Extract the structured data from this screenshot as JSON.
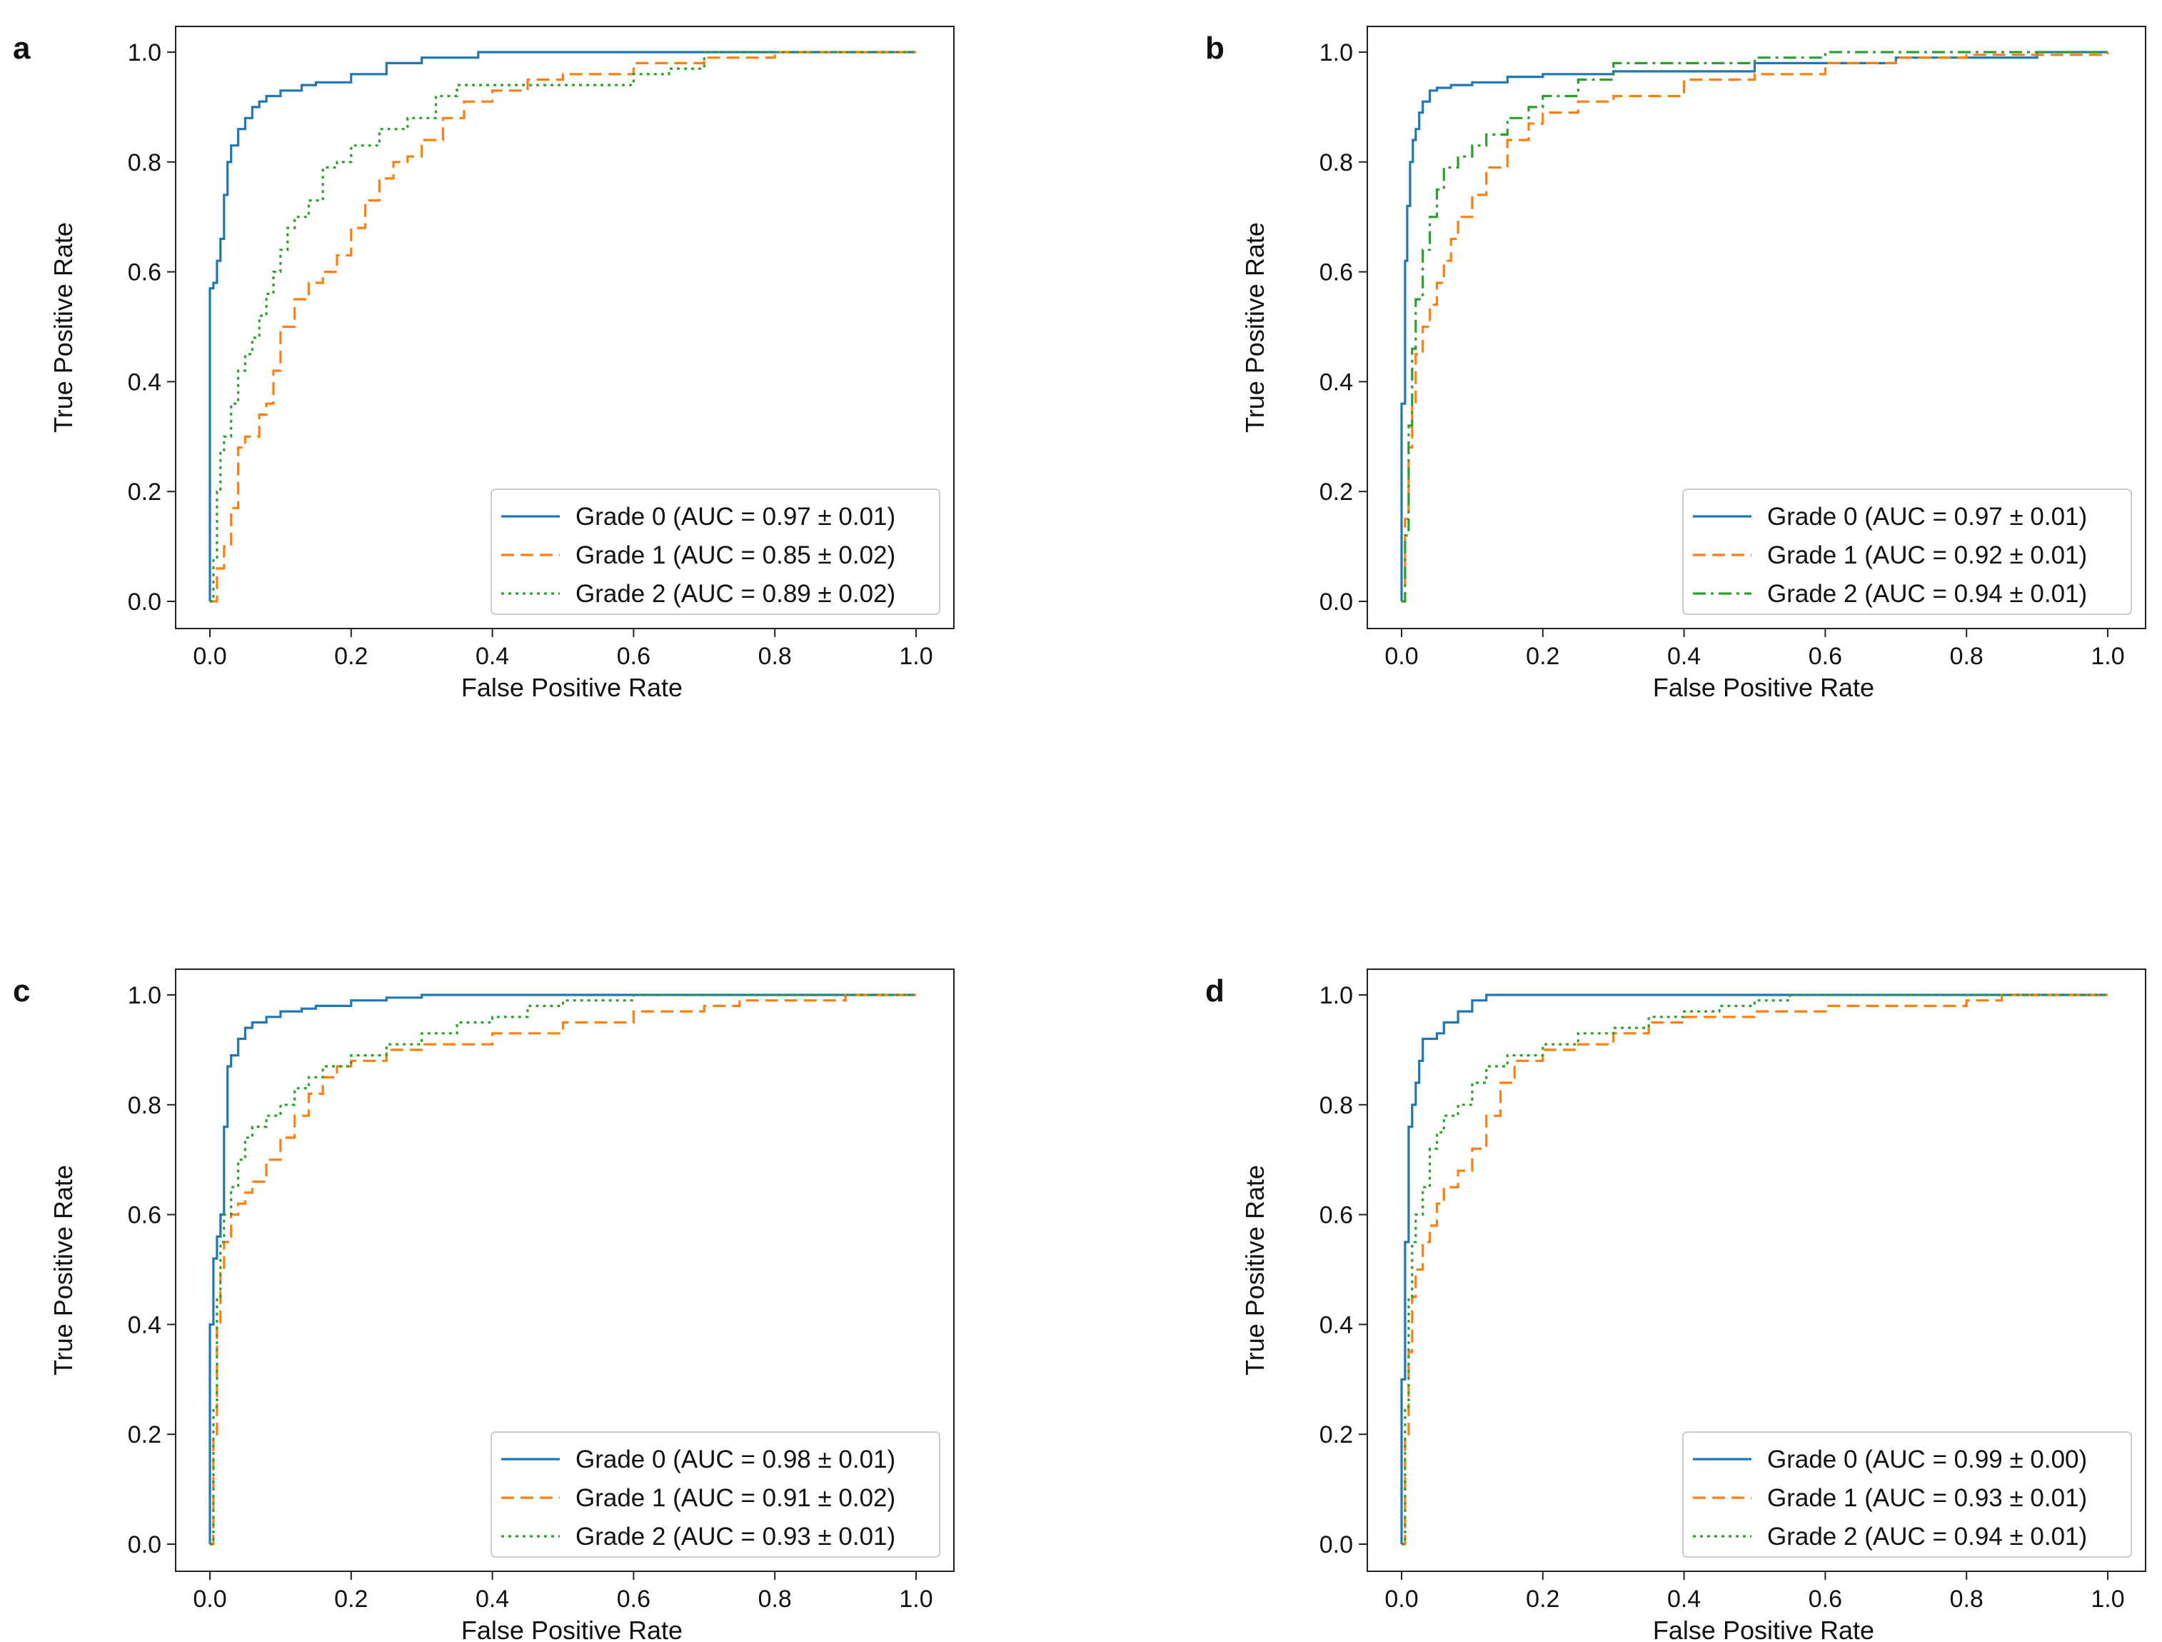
{
  "chart_data": [
    {
      "panel": "a",
      "type": "line",
      "title": "",
      "xlabel": "False Positive Rate",
      "ylabel": "True Positive Rate",
      "xlim": [
        0.0,
        1.0
      ],
      "ylim": [
        0.0,
        1.0
      ],
      "xticks": [
        "0.0",
        "0.2",
        "0.4",
        "0.6",
        "0.8",
        "1.0"
      ],
      "yticks": [
        "0.0",
        "0.2",
        "0.4",
        "0.6",
        "0.8",
        "1.0"
      ],
      "legend_position": "bottom-right",
      "series": [
        {
          "name": "Grade 0",
          "label": "Grade 0 (AUC = 0.97 ± 0.01)",
          "style": "solid",
          "color": "#1f77b4",
          "x": [
            0,
            0,
            0.005,
            0.01,
            0.015,
            0.02,
            0.025,
            0.03,
            0.04,
            0.05,
            0.06,
            0.07,
            0.08,
            0.1,
            0.13,
            0.15,
            0.2,
            0.25,
            0.3,
            0.38,
            0.5,
            1.0
          ],
          "y": [
            0,
            0.57,
            0.58,
            0.62,
            0.66,
            0.74,
            0.8,
            0.83,
            0.86,
            0.88,
            0.9,
            0.91,
            0.92,
            0.93,
            0.94,
            0.945,
            0.96,
            0.98,
            0.99,
            1.0,
            1.0,
            1.0
          ]
        },
        {
          "name": "Grade 1",
          "label": "Grade 1 (AUC = 0.85 ± 0.02)",
          "style": "dashed",
          "color": "#ff7f0e",
          "x": [
            0,
            0.01,
            0.02,
            0.03,
            0.04,
            0.05,
            0.07,
            0.08,
            0.09,
            0.1,
            0.12,
            0.14,
            0.16,
            0.18,
            0.2,
            0.22,
            0.24,
            0.26,
            0.28,
            0.3,
            0.33,
            0.36,
            0.4,
            0.45,
            0.5,
            0.6,
            0.7,
            0.8,
            1.0
          ],
          "y": [
            0,
            0.06,
            0.1,
            0.17,
            0.28,
            0.3,
            0.34,
            0.36,
            0.42,
            0.5,
            0.55,
            0.58,
            0.6,
            0.63,
            0.68,
            0.73,
            0.77,
            0.8,
            0.81,
            0.84,
            0.88,
            0.91,
            0.93,
            0.95,
            0.96,
            0.98,
            0.99,
            1.0,
            1.0
          ]
        },
        {
          "name": "Grade 2",
          "label": "Grade 2 (AUC = 0.89 ± 0.02)",
          "style": "dotted",
          "color": "#2ca02c",
          "x": [
            0,
            0.005,
            0.01,
            0.015,
            0.02,
            0.03,
            0.04,
            0.05,
            0.06,
            0.07,
            0.08,
            0.09,
            0.1,
            0.11,
            0.12,
            0.14,
            0.16,
            0.18,
            0.2,
            0.24,
            0.28,
            0.32,
            0.35,
            0.4,
            0.5,
            0.6,
            0.65,
            0.7,
            1.0
          ],
          "y": [
            0,
            0.08,
            0.2,
            0.27,
            0.3,
            0.36,
            0.42,
            0.45,
            0.48,
            0.52,
            0.56,
            0.6,
            0.64,
            0.68,
            0.7,
            0.73,
            0.79,
            0.8,
            0.83,
            0.86,
            0.88,
            0.92,
            0.94,
            0.94,
            0.94,
            0.96,
            0.97,
            1.0,
            1.0
          ]
        }
      ]
    },
    {
      "panel": "b",
      "type": "line",
      "title": "",
      "xlabel": "False Positive Rate",
      "ylabel": "True Positive Rate",
      "xlim": [
        0.0,
        1.0
      ],
      "ylim": [
        0.0,
        1.0
      ],
      "xticks": [
        "0.0",
        "0.2",
        "0.4",
        "0.6",
        "0.8",
        "1.0"
      ],
      "yticks": [
        "0.0",
        "0.2",
        "0.4",
        "0.6",
        "0.8",
        "1.0"
      ],
      "legend_position": "bottom-right",
      "series": [
        {
          "name": "Grade 0",
          "label": "Grade 0 (AUC = 0.97 ± 0.01)",
          "style": "solid",
          "color": "#1f77b4",
          "x": [
            0,
            0,
            0.005,
            0.008,
            0.012,
            0.016,
            0.02,
            0.025,
            0.03,
            0.04,
            0.05,
            0.07,
            0.1,
            0.15,
            0.2,
            0.3,
            0.5,
            0.7,
            0.9,
            1.0
          ],
          "y": [
            0,
            0.36,
            0.62,
            0.72,
            0.8,
            0.84,
            0.86,
            0.89,
            0.91,
            0.93,
            0.935,
            0.94,
            0.945,
            0.955,
            0.96,
            0.965,
            0.98,
            0.99,
            1.0,
            1.0
          ]
        },
        {
          "name": "Grade 1",
          "label": "Grade 1 (AUC = 0.92 ± 0.01)",
          "style": "dashed",
          "color": "#ff7f0e",
          "x": [
            0,
            0.005,
            0.01,
            0.015,
            0.02,
            0.03,
            0.04,
            0.05,
            0.06,
            0.07,
            0.08,
            0.1,
            0.12,
            0.15,
            0.18,
            0.2,
            0.25,
            0.3,
            0.4,
            0.5,
            0.6,
            0.7,
            0.8,
            1.0
          ],
          "y": [
            0,
            0.15,
            0.28,
            0.36,
            0.45,
            0.5,
            0.54,
            0.58,
            0.62,
            0.66,
            0.7,
            0.74,
            0.79,
            0.84,
            0.87,
            0.89,
            0.91,
            0.92,
            0.95,
            0.96,
            0.98,
            0.99,
            0.995,
            1.0
          ]
        },
        {
          "name": "Grade 2",
          "label": "Grade 2 (AUC = 0.94 ± 0.01)",
          "style": "dashdot",
          "color": "#2ca02c",
          "x": [
            0,
            0.005,
            0.01,
            0.015,
            0.02,
            0.03,
            0.04,
            0.05,
            0.06,
            0.08,
            0.1,
            0.12,
            0.15,
            0.18,
            0.2,
            0.25,
            0.3,
            0.4,
            0.5,
            0.6,
            0.8,
            1.0
          ],
          "y": [
            0,
            0.12,
            0.32,
            0.46,
            0.55,
            0.64,
            0.7,
            0.75,
            0.79,
            0.81,
            0.83,
            0.85,
            0.88,
            0.9,
            0.92,
            0.95,
            0.98,
            0.98,
            0.99,
            1.0,
            1.0,
            1.0
          ]
        }
      ]
    },
    {
      "panel": "c",
      "type": "line",
      "title": "",
      "xlabel": "False Positive Rate",
      "ylabel": "True Positive Rate",
      "xlim": [
        0.0,
        1.0
      ],
      "ylim": [
        0.0,
        1.0
      ],
      "xticks": [
        "0.0",
        "0.2",
        "0.4",
        "0.6",
        "0.8",
        "1.0"
      ],
      "yticks": [
        "0.0",
        "0.2",
        "0.4",
        "0.6",
        "0.8",
        "1.0"
      ],
      "legend_position": "bottom-right",
      "series": [
        {
          "name": "Grade 0",
          "label": "Grade 0 (AUC = 0.98 ± 0.01)",
          "style": "solid",
          "color": "#1f77b4",
          "x": [
            0,
            0,
            0.005,
            0.01,
            0.015,
            0.02,
            0.025,
            0.03,
            0.04,
            0.05,
            0.06,
            0.08,
            0.1,
            0.13,
            0.15,
            0.2,
            0.25,
            0.3,
            0.35,
            0.5,
            1.0
          ],
          "y": [
            0,
            0.4,
            0.52,
            0.56,
            0.6,
            0.76,
            0.87,
            0.89,
            0.92,
            0.94,
            0.95,
            0.96,
            0.97,
            0.975,
            0.98,
            0.99,
            0.995,
            1.0,
            1.0,
            1.0,
            1.0
          ]
        },
        {
          "name": "Grade 1",
          "label": "Grade 1 (AUC = 0.91 ± 0.02)",
          "style": "dashed",
          "color": "#ff7f0e",
          "x": [
            0,
            0.005,
            0.01,
            0.015,
            0.02,
            0.03,
            0.04,
            0.05,
            0.06,
            0.08,
            0.1,
            0.12,
            0.14,
            0.16,
            0.18,
            0.2,
            0.25,
            0.3,
            0.4,
            0.5,
            0.6,
            0.7,
            0.75,
            0.9,
            1.0
          ],
          "y": [
            0,
            0.2,
            0.4,
            0.5,
            0.55,
            0.6,
            0.62,
            0.64,
            0.66,
            0.7,
            0.74,
            0.78,
            0.82,
            0.85,
            0.87,
            0.88,
            0.9,
            0.91,
            0.93,
            0.95,
            0.97,
            0.98,
            0.99,
            1.0,
            1.0
          ]
        },
        {
          "name": "Grade 2",
          "label": "Grade 2 (AUC = 0.93 ± 0.01)",
          "style": "dotted",
          "color": "#2ca02c",
          "x": [
            0,
            0.005,
            0.01,
            0.015,
            0.02,
            0.03,
            0.04,
            0.05,
            0.06,
            0.08,
            0.1,
            0.12,
            0.14,
            0.16,
            0.2,
            0.25,
            0.3,
            0.35,
            0.4,
            0.45,
            0.5,
            0.6,
            0.8,
            1.0
          ],
          "y": [
            0,
            0.25,
            0.45,
            0.55,
            0.6,
            0.65,
            0.7,
            0.74,
            0.76,
            0.78,
            0.8,
            0.83,
            0.85,
            0.87,
            0.89,
            0.91,
            0.93,
            0.95,
            0.96,
            0.98,
            0.99,
            1.0,
            1.0,
            1.0
          ]
        }
      ]
    },
    {
      "panel": "d",
      "type": "line",
      "title": "",
      "xlabel": "False Positive Rate",
      "ylabel": "True Positive Rate",
      "xlim": [
        0.0,
        1.0
      ],
      "ylim": [
        0.0,
        1.0
      ],
      "xticks": [
        "0.0",
        "0.2",
        "0.4",
        "0.6",
        "0.8",
        "1.0"
      ],
      "yticks": [
        "0.0",
        "0.2",
        "0.4",
        "0.6",
        "0.8",
        "1.0"
      ],
      "legend_position": "bottom-right",
      "series": [
        {
          "name": "Grade 0",
          "label": "Grade 0 (AUC = 0.99 ± 0.00)",
          "style": "solid",
          "color": "#1f77b4",
          "x": [
            0,
            0,
            0.005,
            0.01,
            0.015,
            0.02,
            0.025,
            0.03,
            0.05,
            0.06,
            0.08,
            0.1,
            0.12,
            0.2,
            0.4,
            1.0
          ],
          "y": [
            0,
            0.3,
            0.55,
            0.76,
            0.8,
            0.84,
            0.88,
            0.92,
            0.93,
            0.95,
            0.97,
            0.99,
            1.0,
            1.0,
            1.0,
            1.0
          ]
        },
        {
          "name": "Grade 1",
          "label": "Grade 1 (AUC = 0.93 ± 0.01)",
          "style": "dashed",
          "color": "#ff7f0e",
          "x": [
            0,
            0.005,
            0.01,
            0.015,
            0.02,
            0.03,
            0.04,
            0.05,
            0.06,
            0.08,
            0.1,
            0.12,
            0.14,
            0.16,
            0.2,
            0.25,
            0.3,
            0.35,
            0.4,
            0.5,
            0.6,
            0.8,
            0.85,
            1.0
          ],
          "y": [
            0,
            0.2,
            0.35,
            0.45,
            0.5,
            0.55,
            0.58,
            0.62,
            0.65,
            0.68,
            0.72,
            0.78,
            0.84,
            0.88,
            0.9,
            0.91,
            0.93,
            0.95,
            0.96,
            0.97,
            0.98,
            0.99,
            1.0,
            1.0
          ]
        },
        {
          "name": "Grade 2",
          "label": "Grade 2 (AUC = 0.94 ± 0.01)",
          "style": "dotted",
          "color": "#2ca02c",
          "x": [
            0,
            0.005,
            0.01,
            0.015,
            0.02,
            0.03,
            0.04,
            0.05,
            0.06,
            0.08,
            0.1,
            0.12,
            0.15,
            0.2,
            0.25,
            0.3,
            0.35,
            0.4,
            0.45,
            0.5,
            0.55,
            1.0
          ],
          "y": [
            0,
            0.25,
            0.45,
            0.55,
            0.6,
            0.65,
            0.72,
            0.75,
            0.78,
            0.8,
            0.84,
            0.87,
            0.89,
            0.91,
            0.93,
            0.94,
            0.96,
            0.97,
            0.98,
            0.99,
            1.0,
            1.0
          ]
        }
      ]
    }
  ]
}
